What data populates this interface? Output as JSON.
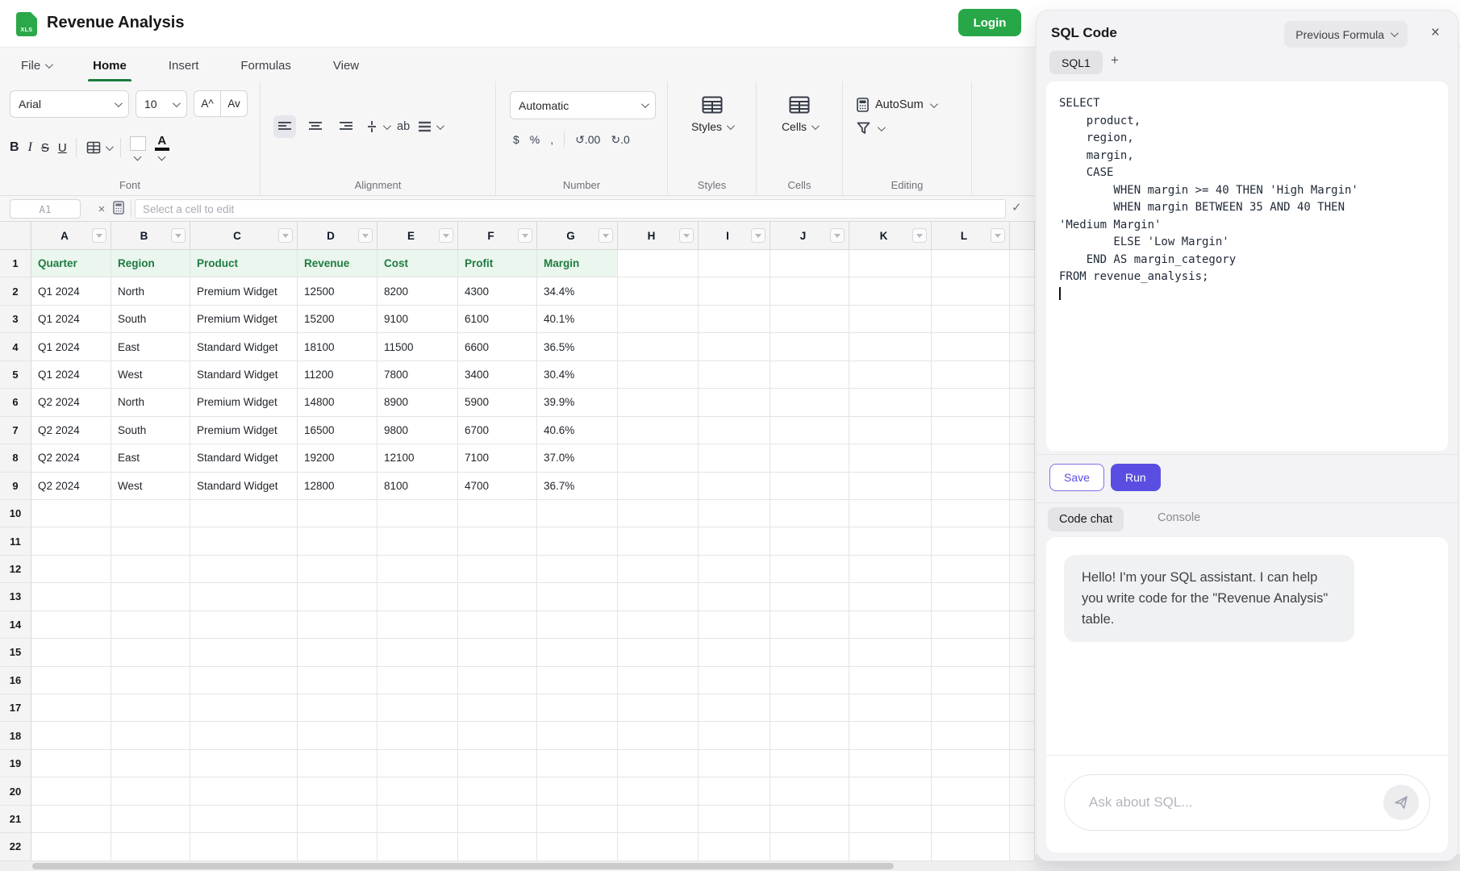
{
  "app": {
    "title": "Revenue Analysis",
    "login": "Login"
  },
  "menu": {
    "items": [
      "File",
      "Home",
      "Insert",
      "Formulas",
      "View"
    ]
  },
  "toolbar": {
    "font_family": "Arial",
    "font_size": "10",
    "grow": "A^",
    "shrink": "Av",
    "bold": "B",
    "italic": "I",
    "strike": "S",
    "underline": "U",
    "wrap": "ab",
    "number_format": "Automatic",
    "currency": "$",
    "percent": "%",
    "comma": ",",
    "dec_more": ".00",
    "dec_less": ".0",
    "styles": "Styles",
    "cells": "Cells",
    "autosum": "AutoSum",
    "labels": {
      "font": "Font",
      "alignment": "Alignment",
      "number": "Number",
      "styles": "Styles",
      "cells": "Cells",
      "editing": "Editing"
    }
  },
  "formula_bar": {
    "cell_ref": "A1",
    "placeholder": "Select a cell to edit",
    "confirm": "✓",
    "clear": "×"
  },
  "sheet": {
    "columns": [
      "A",
      "B",
      "C",
      "D",
      "E",
      "F",
      "G",
      "H",
      "I",
      "J",
      "K",
      "L"
    ],
    "row_count": 22,
    "header_row": [
      "Quarter",
      "Region",
      "Product",
      "Revenue",
      "Cost",
      "Profit",
      "Margin"
    ],
    "data_rows": [
      [
        "Q1 2024",
        "North",
        "Premium Widget",
        "12500",
        "8200",
        "4300",
        "34.4%"
      ],
      [
        "Q1 2024",
        "South",
        "Premium Widget",
        "15200",
        "9100",
        "6100",
        "40.1%"
      ],
      [
        "Q1 2024",
        "East",
        "Standard Widget",
        "18100",
        "11500",
        "6600",
        "36.5%"
      ],
      [
        "Q1 2024",
        "West",
        "Standard Widget",
        "11200",
        "7800",
        "3400",
        "30.4%"
      ],
      [
        "Q2 2024",
        "North",
        "Premium Widget",
        "14800",
        "8900",
        "5900",
        "39.9%"
      ],
      [
        "Q2 2024",
        "South",
        "Premium Widget",
        "16500",
        "9800",
        "6700",
        "40.6%"
      ],
      [
        "Q2 2024",
        "East",
        "Standard Widget",
        "19200",
        "12100",
        "7100",
        "37.0%"
      ],
      [
        "Q2 2024",
        "West",
        "Standard Widget",
        "12800",
        "8100",
        "4700",
        "36.7%"
      ]
    ]
  },
  "panel": {
    "title": "SQL Code",
    "previous_formula": "Previous Formula",
    "close": "×",
    "tab_sql1": "SQL1",
    "tab_add": "+",
    "code": "SELECT\n    product,\n    region,\n    margin,\n    CASE\n        WHEN margin >= 40 THEN 'High Margin'\n        WHEN margin BETWEEN 35 AND 40 THEN\n'Medium Margin'\n        ELSE 'Low Margin'\n    END AS margin_category\nFROM revenue_analysis;\n",
    "save": "Save",
    "run": "Run",
    "tab_code_chat": "Code chat",
    "tab_console": "Console",
    "assistant_message": "Hello! I'm your SQL assistant. I can help you write code for the \"Revenue Analysis\" table.",
    "input_placeholder": "Ask about SQL..."
  },
  "colors": {
    "accent_indigo": "#5a4ee2",
    "login_green": "#27a747",
    "header_green": "#1e7b40"
  }
}
